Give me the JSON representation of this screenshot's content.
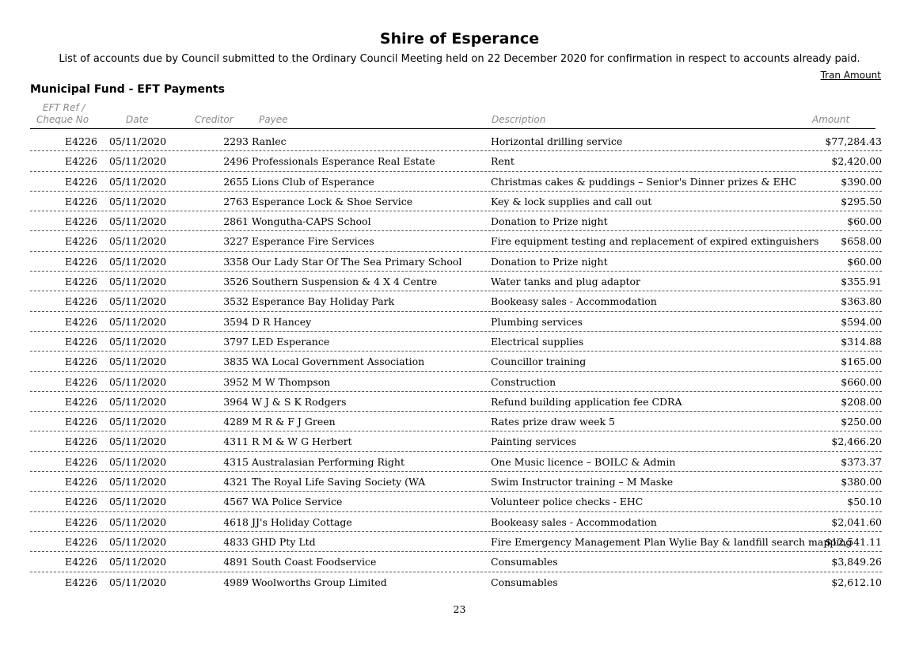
{
  "document": {
    "title": "Shire of Esperance",
    "subtitle": "List of accounts due by Council submitted to the Ordinary Council Meeting held on 22 December 2020 for confirmation in respect to accounts already paid.",
    "tran_amount_label": "Tran Amount",
    "section_title": "Municipal Fund - EFT Payments",
    "page_number": "23"
  },
  "table": {
    "headers": {
      "ref_line1": "EFT Ref /",
      "ref_line2": "Cheque No",
      "date": "Date",
      "creditor": "Creditor",
      "payee": "Payee",
      "description": "Description",
      "amount": "Amount"
    },
    "rows": [
      {
        "ref": "E4226",
        "date": "05/11/2020",
        "creditor": "2293",
        "payee": "Ranlec",
        "description": "Horizontal drilling service",
        "amount": "$77,284.43"
      },
      {
        "ref": "E4226",
        "date": "05/11/2020",
        "creditor": "2496",
        "payee": "Professionals Esperance Real Estate",
        "description": "Rent",
        "amount": "$2,420.00"
      },
      {
        "ref": "E4226",
        "date": "05/11/2020",
        "creditor": "2655",
        "payee": "Lions Club of Esperance",
        "description": "Christmas cakes & puddings – Senior's Dinner prizes & EHC",
        "amount": "$390.00"
      },
      {
        "ref": "E4226",
        "date": "05/11/2020",
        "creditor": "2763",
        "payee": "Esperance Lock & Shoe Service",
        "description": "Key & lock supplies and call out",
        "amount": "$295.50"
      },
      {
        "ref": "E4226",
        "date": "05/11/2020",
        "creditor": "2861",
        "payee": "Wongutha-CAPS School",
        "description": "Donation to Prize night",
        "amount": "$60.00"
      },
      {
        "ref": "E4226",
        "date": "05/11/2020",
        "creditor": "3227",
        "payee": "Esperance Fire Services",
        "description": "Fire equipment testing and replacement of expired extinguishers",
        "amount": "$658.00"
      },
      {
        "ref": "E4226",
        "date": "05/11/2020",
        "creditor": "3358",
        "payee": "Our Lady Star Of The Sea Primary School",
        "description": "Donation to Prize night",
        "amount": "$60.00"
      },
      {
        "ref": "E4226",
        "date": "05/11/2020",
        "creditor": "3526",
        "payee": "Southern Suspension & 4 X 4 Centre",
        "description": "Water tanks and plug adaptor",
        "amount": "$355.91"
      },
      {
        "ref": "E4226",
        "date": "05/11/2020",
        "creditor": "3532",
        "payee": "Esperance Bay Holiday Park",
        "description": "Bookeasy sales - Accommodation",
        "amount": "$363.80"
      },
      {
        "ref": "E4226",
        "date": "05/11/2020",
        "creditor": "3594",
        "payee": "D R Hancey",
        "description": "Plumbing services",
        "amount": "$594.00"
      },
      {
        "ref": "E4226",
        "date": "05/11/2020",
        "creditor": "3797",
        "payee": "LED Esperance",
        "description": "Electrical supplies",
        "amount": "$314.88"
      },
      {
        "ref": "E4226",
        "date": "05/11/2020",
        "creditor": "3835",
        "payee": "WA Local Government Association",
        "description": "Councillor training",
        "amount": "$165.00"
      },
      {
        "ref": "E4226",
        "date": "05/11/2020",
        "creditor": "3952",
        "payee": "M W Thompson",
        "description": "Construction",
        "amount": "$660.00"
      },
      {
        "ref": "E4226",
        "date": "05/11/2020",
        "creditor": "3964",
        "payee": "W J & S K Rodgers",
        "description": "Refund building application fee CDRA",
        "amount": "$208.00"
      },
      {
        "ref": "E4226",
        "date": "05/11/2020",
        "creditor": "4289",
        "payee": "M R & F J Green",
        "description": "Rates prize draw week 5",
        "amount": "$250.00"
      },
      {
        "ref": "E4226",
        "date": "05/11/2020",
        "creditor": "4311",
        "payee": "R M & W G Herbert",
        "description": "Painting services",
        "amount": "$2,466.20"
      },
      {
        "ref": "E4226",
        "date": "05/11/2020",
        "creditor": "4315",
        "payee": "Australasian Performing Right",
        "description": "One Music licence – BOILC & Admin",
        "amount": "$373.37"
      },
      {
        "ref": "E4226",
        "date": "05/11/2020",
        "creditor": "4321",
        "payee": "The Royal Life Saving Society (WA",
        "description": "Swim Instructor training – M Maske",
        "amount": "$380.00"
      },
      {
        "ref": "E4226",
        "date": "05/11/2020",
        "creditor": "4567",
        "payee": "WA Police Service",
        "description": "Volunteer police checks - EHC",
        "amount": "$50.10"
      },
      {
        "ref": "E4226",
        "date": "05/11/2020",
        "creditor": "4618",
        "payee": "JJ's Holiday Cottage",
        "description": "Bookeasy sales - Accommodation",
        "amount": "$2,041.60"
      },
      {
        "ref": "E4226",
        "date": "05/11/2020",
        "creditor": "4833",
        "payee": "GHD Pty Ltd",
        "description": "Fire Emergency Management Plan Wylie Bay & landfill search mapping",
        "amount": "$12,541.11"
      },
      {
        "ref": "E4226",
        "date": "05/11/2020",
        "creditor": "4891",
        "payee": "South Coast Foodservice",
        "description": "Consumables",
        "amount": "$3,849.26"
      },
      {
        "ref": "E4226",
        "date": "05/11/2020",
        "creditor": "4989",
        "payee": "Woolworths Group Limited",
        "description": "Consumables",
        "amount": "$2,612.10"
      }
    ]
  }
}
